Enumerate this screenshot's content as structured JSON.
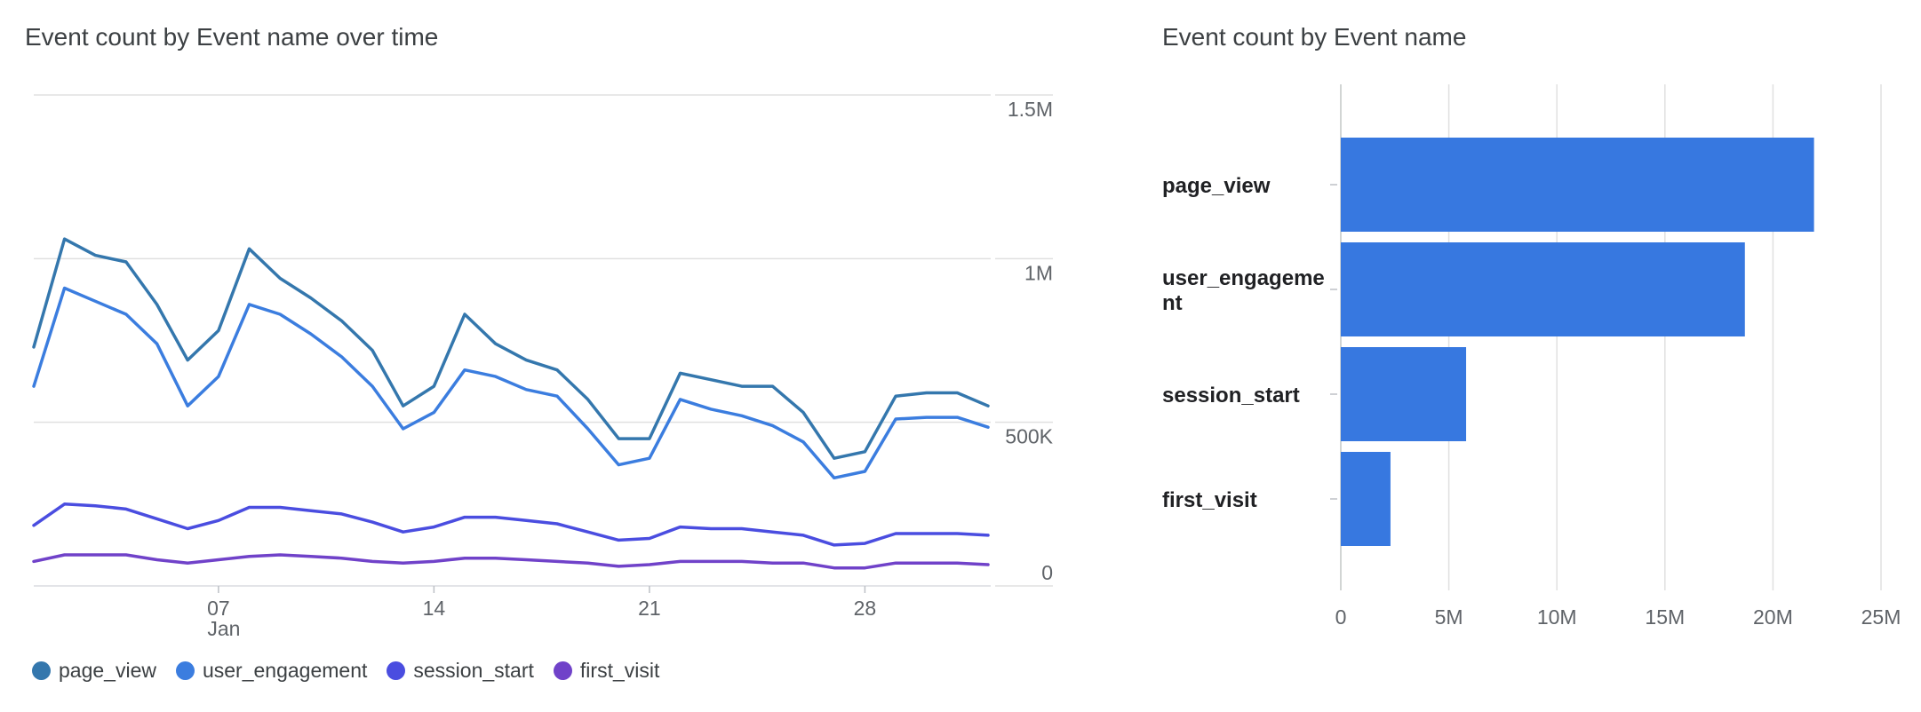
{
  "line_card": {
    "title": "Event count by Event name over time"
  },
  "bar_card": {
    "title": "Event count by Event name"
  },
  "legend": [
    {
      "label": "page_view",
      "color": "#3477ad"
    },
    {
      "label": "user_engagement",
      "color": "#3b7ddf"
    },
    {
      "label": "session_start",
      "color": "#4a4de0"
    },
    {
      "label": "first_visit",
      "color": "#7042c9"
    }
  ],
  "chart_data": [
    {
      "type": "line",
      "title": "Event count by Event name over time",
      "x": [
        "Jan 1",
        "Jan 2",
        "Jan 3",
        "Jan 4",
        "Jan 5",
        "Jan 6",
        "Jan 7",
        "Jan 8",
        "Jan 9",
        "Jan 10",
        "Jan 11",
        "Jan 12",
        "Jan 13",
        "Jan 14",
        "Jan 15",
        "Jan 16",
        "Jan 17",
        "Jan 18",
        "Jan 19",
        "Jan 20",
        "Jan 21",
        "Jan 22",
        "Jan 23",
        "Jan 24",
        "Jan 25",
        "Jan 26",
        "Jan 27",
        "Jan 28",
        "Jan 29",
        "Jan 30",
        "Jan 31",
        "Feb 1"
      ],
      "x_ticks": [
        {
          "label": "07",
          "sublabel": "Jan",
          "index": 6
        },
        {
          "label": "14",
          "sublabel": "",
          "index": 13
        },
        {
          "label": "21",
          "sublabel": "",
          "index": 20
        },
        {
          "label": "28",
          "sublabel": "",
          "index": 27
        }
      ],
      "y_ticks": [
        {
          "label": "0",
          "value": 0
        },
        {
          "label": "500K",
          "value": 500000
        },
        {
          "label": "1M",
          "value": 1000000
        },
        {
          "label": "1.5M",
          "value": 1500000
        }
      ],
      "ylim": [
        0,
        1500000
      ],
      "y_axis_position": "right",
      "grid": true,
      "legend_position": "bottom",
      "series": [
        {
          "name": "page_view",
          "color": "#3477ad",
          "values": [
            730000,
            1060000,
            1010000,
            990000,
            860000,
            690000,
            780000,
            1030000,
            940000,
            880000,
            810000,
            720000,
            550000,
            610000,
            830000,
            740000,
            690000,
            660000,
            570000,
            450000,
            450000,
            650000,
            630000,
            610000,
            610000,
            530000,
            390000,
            410000,
            580000,
            590000,
            590000,
            550000
          ]
        },
        {
          "name": "user_engagement",
          "color": "#3b7ddf",
          "values": [
            610000,
            910000,
            870000,
            830000,
            740000,
            550000,
            640000,
            860000,
            830000,
            770000,
            700000,
            610000,
            480000,
            530000,
            660000,
            640000,
            600000,
            580000,
            480000,
            370000,
            390000,
            570000,
            540000,
            520000,
            490000,
            440000,
            330000,
            350000,
            510000,
            515000,
            515000,
            485000
          ]
        },
        {
          "name": "session_start",
          "color": "#4a4de0",
          "values": [
            185000,
            250000,
            245000,
            235000,
            205000,
            175000,
            200000,
            240000,
            240000,
            230000,
            220000,
            195000,
            165000,
            180000,
            210000,
            210000,
            200000,
            190000,
            165000,
            140000,
            145000,
            180000,
            175000,
            175000,
            165000,
            155000,
            125000,
            130000,
            160000,
            160000,
            160000,
            155000
          ]
        },
        {
          "name": "first_visit",
          "color": "#7042c9",
          "values": [
            75000,
            95000,
            95000,
            95000,
            80000,
            70000,
            80000,
            90000,
            95000,
            90000,
            85000,
            75000,
            70000,
            75000,
            85000,
            85000,
            80000,
            75000,
            70000,
            60000,
            65000,
            75000,
            75000,
            75000,
            70000,
            70000,
            55000,
            55000,
            70000,
            70000,
            70000,
            65000
          ]
        }
      ]
    },
    {
      "type": "bar",
      "orientation": "horizontal",
      "title": "Event count by Event name",
      "categories": [
        "page_view",
        "user_engagement",
        "session_start",
        "first_visit"
      ],
      "category_display": [
        [
          "page_view"
        ],
        [
          "user_engageme",
          "nt"
        ],
        [
          "session_start"
        ],
        [
          "first_visit"
        ]
      ],
      "values": [
        21900000,
        18700000,
        5800000,
        2300000
      ],
      "color": "#3778e0",
      "xlim": [
        0,
        25000000
      ],
      "x_ticks": [
        {
          "label": "0",
          "value": 0
        },
        {
          "label": "5M",
          "value": 5000000
        },
        {
          "label": "10M",
          "value": 10000000
        },
        {
          "label": "15M",
          "value": 15000000
        },
        {
          "label": "20M",
          "value": 20000000
        },
        {
          "label": "25M",
          "value": 25000000
        }
      ],
      "grid": true
    }
  ]
}
